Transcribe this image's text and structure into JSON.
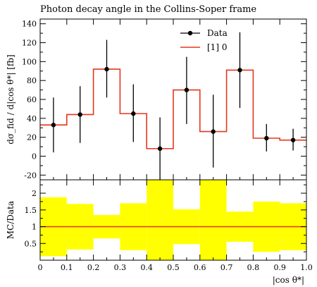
{
  "chart_data": [
    {
      "type": "line",
      "panel": "main",
      "title": "Photon decay angle in the Collins-Soper frame",
      "ylabel": "dσ_fid / d|cos θ*| [fb]",
      "ylim": [
        -25,
        145
      ],
      "yticks": [
        "140",
        "120",
        "100",
        "80",
        "60",
        "40",
        "20",
        "0",
        "-20"
      ],
      "grid": false,
      "legend_position": "top-right",
      "bin_edges": [
        0,
        0.1,
        0.2,
        0.3,
        0.4,
        0.5,
        0.6,
        0.7,
        0.8,
        0.9,
        1.0
      ],
      "series": [
        {
          "name": "Data",
          "style": "points-with-errorbars",
          "color": "#000000",
          "x": [
            0.05,
            0.15,
            0.25,
            0.35,
            0.45,
            0.55,
            0.65,
            0.75,
            0.85,
            0.95
          ],
          "y": [
            33,
            44,
            92,
            45,
            8,
            70,
            26,
            91,
            19,
            17
          ],
          "yerr_low": [
            29,
            30,
            30,
            30,
            34,
            36,
            38,
            40,
            14,
            11
          ],
          "yerr_high": [
            29,
            30,
            31,
            31,
            33,
            35,
            39,
            40,
            15,
            12
          ]
        },
        {
          "name": "[1] 0",
          "style": "step-histogram",
          "color": "#e5361c",
          "y": [
            33,
            44,
            92,
            45,
            8,
            70,
            26,
            91,
            19,
            17
          ]
        }
      ]
    },
    {
      "type": "area",
      "panel": "ratio",
      "ylabel": "MC/Data",
      "xlabel": "|cos θ*|",
      "xlim": [
        0,
        1.0
      ],
      "ylim": [
        0,
        2.4
      ],
      "yticks": [
        "2",
        "1.5",
        "1",
        "0.5"
      ],
      "xticks": [
        "0",
        "0.1",
        "0.2",
        "0.3",
        "0.4",
        "0.5",
        "0.6",
        "0.7",
        "0.8",
        "0.9",
        "1.0"
      ],
      "band_color": "#ffff00",
      "ratio_line_color": "#e5361c",
      "ratio_values": [
        1,
        1,
        1,
        1,
        1,
        1,
        1,
        1,
        1,
        1
      ],
      "band_low": [
        0.12,
        0.32,
        0.65,
        0.3,
        0.0,
        0.48,
        0.0,
        0.55,
        0.25,
        0.3
      ],
      "band_high": [
        1.88,
        1.68,
        1.35,
        1.7,
        2.4,
        1.52,
        2.4,
        1.45,
        1.75,
        1.7
      ]
    }
  ]
}
